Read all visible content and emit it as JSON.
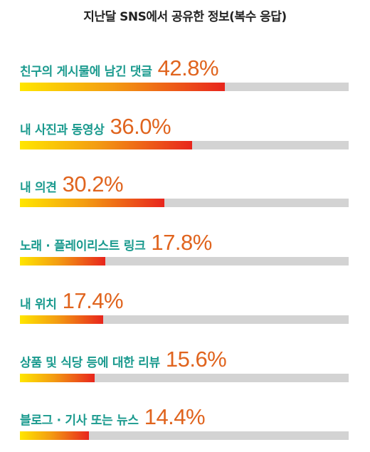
{
  "chart_data": {
    "type": "bar",
    "title": "지난달 SNS에서 공유한 정보(복수 응답)",
    "categories": [
      "친구의 게시물에 남긴 댓글",
      "내 사진과 동영상",
      "내 의견",
      "노래 · 플레이리스트 링크",
      "내 위치",
      "상품 및 식당 등에 대한 리뷰",
      "블로그 · 기사 또는 뉴스"
    ],
    "values": [
      42.8,
      36.0,
      30.2,
      17.8,
      17.4,
      15.6,
      14.4
    ],
    "value_labels": [
      "42.8%",
      "36.0%",
      "30.2%",
      "17.8%",
      "17.4%",
      "15.6%",
      "14.4%"
    ],
    "unit": "%",
    "xlim": [
      0,
      68.6
    ],
    "orientation": "horizontal",
    "grid": false,
    "colors": {
      "label": "#1a9a8e",
      "value": "#e0641e",
      "track": "#d3d3d3",
      "gradient_start": "#ffe600",
      "gradient_mid": "#f39c12",
      "gradient_end": "#e8251d"
    }
  }
}
